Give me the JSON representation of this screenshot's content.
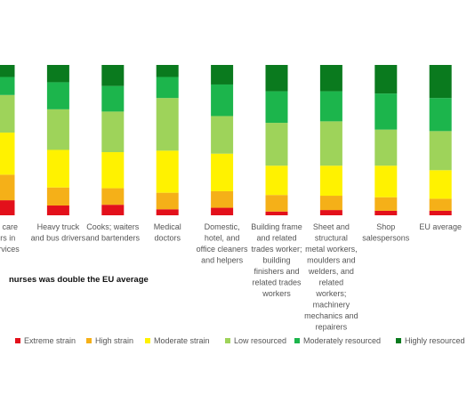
{
  "chart_data": {
    "type": "stacked_bar",
    "annotation": "nurses was double the EU average",
    "categories": [
      "nal care\nkers in\n services",
      "Heavy truck\nand bus drivers",
      "Cooks; waiters\nand bartenders",
      "Medical\ndoctors",
      "Domestic,\nhotel, and\noffice cleaners\nand helpers",
      "Building frame\nand related\ntrades worker;\nbuilding\nfinishers and\nrelated trades\nworkers",
      "Sheet and\nstructural\nmetal workers,\nmoulders and\nwelders, and\nrelated\nworkers;\nmachinery\nmechanics and\nrepairers",
      "Shop\nsalespersons",
      "EU average"
    ],
    "series": [
      {
        "name": "Extreme strain",
        "color": "#e3101b",
        "values": [
          10,
          6.5,
          7,
          4,
          5,
          2.5,
          3.5,
          3,
          3
        ]
      },
      {
        "name": "High strain",
        "color": "#f5b018",
        "values": [
          17,
          12,
          11,
          11,
          11,
          11,
          9.5,
          9,
          8
        ]
      },
      {
        "name": "Moderate strain",
        "color": "#fff200",
        "values": [
          28,
          25,
          24,
          28,
          25,
          19.5,
          20,
          21,
          19
        ]
      },
      {
        "name": "Low resourced",
        "color": "#9ed35a",
        "values": [
          25,
          27,
          27,
          35,
          25,
          28.5,
          29.5,
          24,
          26
        ]
      },
      {
        "name": "Moderately resourced",
        "color": "#1cb54c",
        "values": [
          12,
          18,
          17,
          14,
          21,
          21,
          20,
          24,
          22
        ]
      },
      {
        "name": "Highly resourced",
        "color": "#0a7a1e",
        "values": [
          8,
          11.5,
          14,
          8,
          13,
          17.5,
          17.5,
          19,
          22
        ]
      }
    ],
    "ylim": [
      0,
      100
    ]
  }
}
